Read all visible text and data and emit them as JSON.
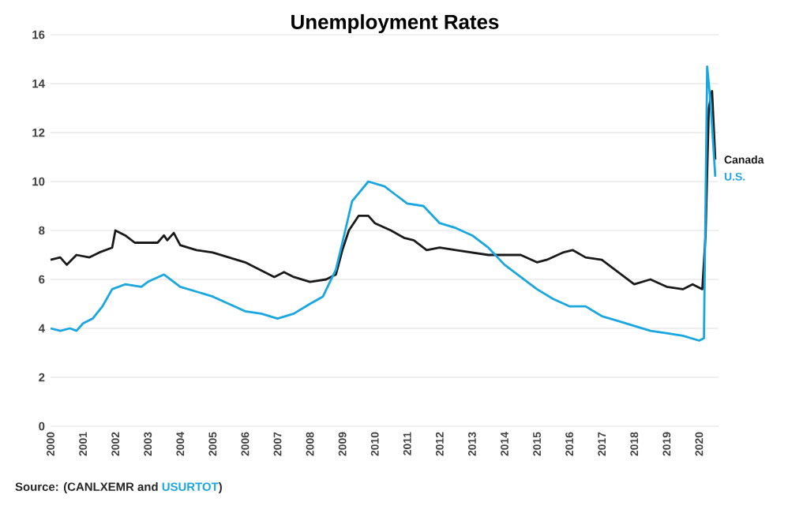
{
  "chart_data": {
    "type": "line",
    "title": "Unemployment Rates",
    "annotations": [
      "Source: (CANLXEMR and",
      "USURTOT",
      ")"
    ],
    "xlim": [
      2000,
      2020.6
    ],
    "ylim": [
      0,
      16
    ],
    "xticks": [
      2000,
      2001,
      2002,
      2003,
      2004,
      2005,
      2006,
      2007,
      2008,
      2009,
      2010,
      2011,
      2012,
      2013,
      2014,
      2015,
      2016,
      2017,
      2018,
      2019,
      2020
    ],
    "yticks": [
      0,
      2,
      4,
      6,
      8,
      10,
      12,
      14,
      16
    ],
    "grid": "y",
    "series": [
      {
        "name": "Canada",
        "color": "#1a1a1a",
        "x": [
          2000,
          2000.3,
          2000.5,
          2000.8,
          2001.2,
          2001.5,
          2001.9,
          2002.0,
          2002.3,
          2002.6,
          2003.0,
          2003.3,
          2003.5,
          2003.6,
          2003.8,
          2004.0,
          2004.5,
          2005.0,
          2005.5,
          2006.0,
          2006.3,
          2006.6,
          2006.9,
          2007.2,
          2007.5,
          2008.0,
          2008.5,
          2008.8,
          2009.0,
          2009.2,
          2009.5,
          2009.8,
          2010.0,
          2010.5,
          2010.9,
          2011.2,
          2011.6,
          2012.0,
          2012.5,
          2013.0,
          2013.5,
          2014.0,
          2014.5,
          2015.0,
          2015.3,
          2015.8,
          2016.1,
          2016.5,
          2017.0,
          2017.5,
          2018.0,
          2018.5,
          2019.0,
          2019.5,
          2019.8,
          2020.1,
          2020.2,
          2020.3,
          2020.4,
          2020.5
        ],
        "values": [
          6.8,
          6.9,
          6.6,
          7.0,
          6.9,
          7.1,
          7.3,
          8.0,
          7.8,
          7.5,
          7.5,
          7.5,
          7.8,
          7.6,
          7.9,
          7.4,
          7.2,
          7.1,
          6.9,
          6.7,
          6.5,
          6.3,
          6.1,
          6.3,
          6.1,
          5.9,
          6.0,
          6.2,
          7.2,
          8.0,
          8.6,
          8.6,
          8.3,
          8.0,
          7.7,
          7.6,
          7.2,
          7.3,
          7.2,
          7.1,
          7.0,
          7.0,
          7.0,
          6.7,
          6.8,
          7.1,
          7.2,
          6.9,
          6.8,
          6.3,
          5.8,
          6.0,
          5.7,
          5.6,
          5.8,
          5.6,
          7.8,
          13.0,
          13.7,
          10.9
        ]
      },
      {
        "name": "U.S.",
        "color": "#1aa7e0",
        "x": [
          2000,
          2000.3,
          2000.6,
          2000.8,
          2001.0,
          2001.3,
          2001.6,
          2001.9,
          2002.3,
          2002.8,
          2003.0,
          2003.5,
          2004.0,
          2004.5,
          2005.0,
          2005.5,
          2006.0,
          2006.5,
          2007.0,
          2007.5,
          2008.0,
          2008.4,
          2008.8,
          2009.0,
          2009.3,
          2009.8,
          2010.3,
          2010.6,
          2011.0,
          2011.5,
          2012.0,
          2012.5,
          2013.0,
          2013.5,
          2014.0,
          2014.5,
          2015.0,
          2015.5,
          2016.0,
          2016.5,
          2017.0,
          2017.5,
          2018.0,
          2018.5,
          2019.0,
          2019.5,
          2020.0,
          2020.15,
          2020.25,
          2020.35,
          2020.5
        ],
        "values": [
          4.0,
          3.9,
          4.0,
          3.9,
          4.2,
          4.4,
          4.9,
          5.6,
          5.8,
          5.7,
          5.9,
          6.2,
          5.7,
          5.5,
          5.3,
          5.0,
          4.7,
          4.6,
          4.4,
          4.6,
          5.0,
          5.3,
          6.4,
          7.5,
          9.2,
          10.0,
          9.8,
          9.5,
          9.1,
          9.0,
          8.3,
          8.1,
          7.8,
          7.3,
          6.6,
          6.1,
          5.6,
          5.2,
          4.9,
          4.9,
          4.5,
          4.3,
          4.1,
          3.9,
          3.8,
          3.7,
          3.5,
          3.6,
          14.7,
          13.3,
          10.2
        ]
      }
    ]
  }
}
